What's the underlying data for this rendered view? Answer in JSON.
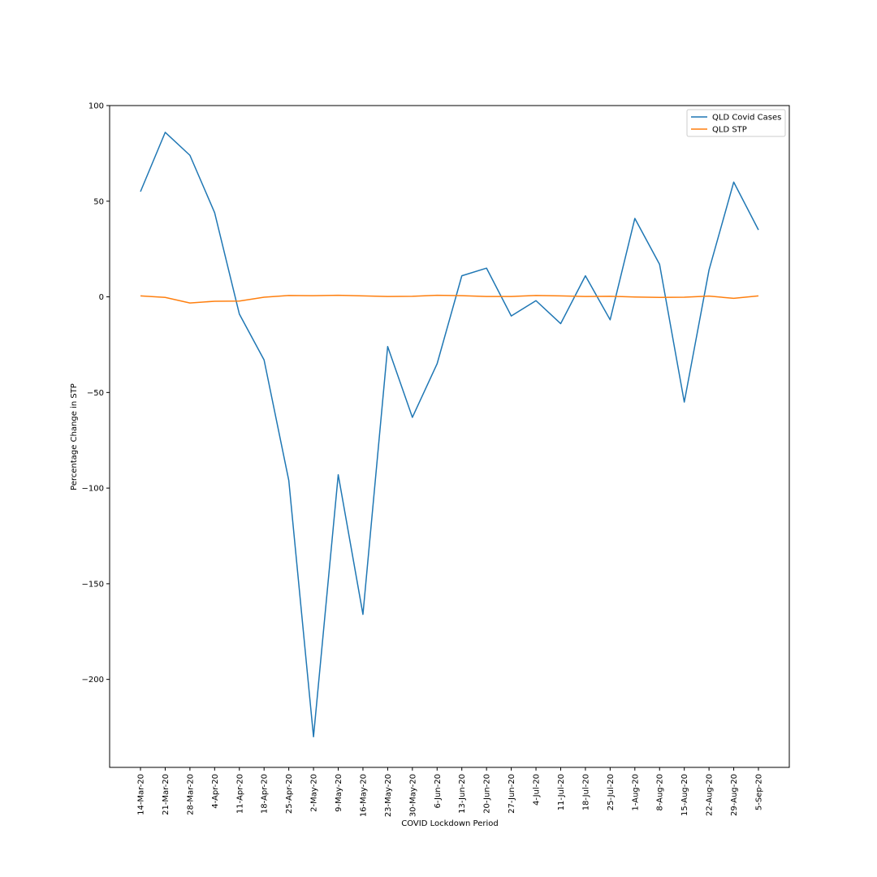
{
  "chart_data": {
    "type": "line",
    "title": "",
    "xlabel": "COVID Lockdown Period",
    "ylabel": "Percentage Change in STP",
    "ylim": [
      -246,
      100
    ],
    "yticks": [
      100,
      50,
      0,
      -50,
      -100,
      -150,
      -200
    ],
    "ytick_labels": [
      "100",
      "50",
      "0",
      "−50",
      "−100",
      "−150",
      "−200"
    ],
    "grid": false,
    "legend_position": "top-right",
    "categories": [
      "14-Mar-20",
      "21-Mar-20",
      "28-Mar-20",
      "4-Apr-20",
      "11-Apr-20",
      "18-Apr-20",
      "25-Apr-20",
      "2-May-20",
      "9-May-20",
      "16-May-20",
      "23-May-20",
      "30-May-20",
      "6-Jun-20",
      "13-Jun-20",
      "20-Jun-20",
      "27-Jun-20",
      "4-Jul-20",
      "11-Jul-20",
      "18-Jul-20",
      "25-Jul-20",
      "1-Aug-20",
      "8-Aug-20",
      "15-Aug-20",
      "22-Aug-20",
      "29-Aug-20",
      "5-Sep-20"
    ],
    "series": [
      {
        "name": "QLD Covid Cases",
        "color": "#1f77b4",
        "values": [
          55,
          86,
          74,
          44,
          -9,
          -33,
          -96,
          -230,
          -93,
          -166,
          -26,
          -63,
          -35,
          11,
          15,
          -10,
          -2,
          -14,
          11,
          -12,
          41,
          17,
          -55,
          14,
          60,
          35
        ]
      },
      {
        "name": "QLD STP",
        "color": "#ff7f0e",
        "values": [
          0.5,
          -0.3,
          -3.2,
          -2.3,
          -2.2,
          -0.2,
          0.7,
          0.6,
          0.8,
          0.5,
          0.2,
          0.3,
          0.8,
          0.6,
          0.2,
          0.2,
          0.7,
          0.5,
          0.2,
          0.3,
          -0.1,
          -0.3,
          -0.2,
          0.4,
          -0.8,
          0.5
        ]
      }
    ]
  }
}
